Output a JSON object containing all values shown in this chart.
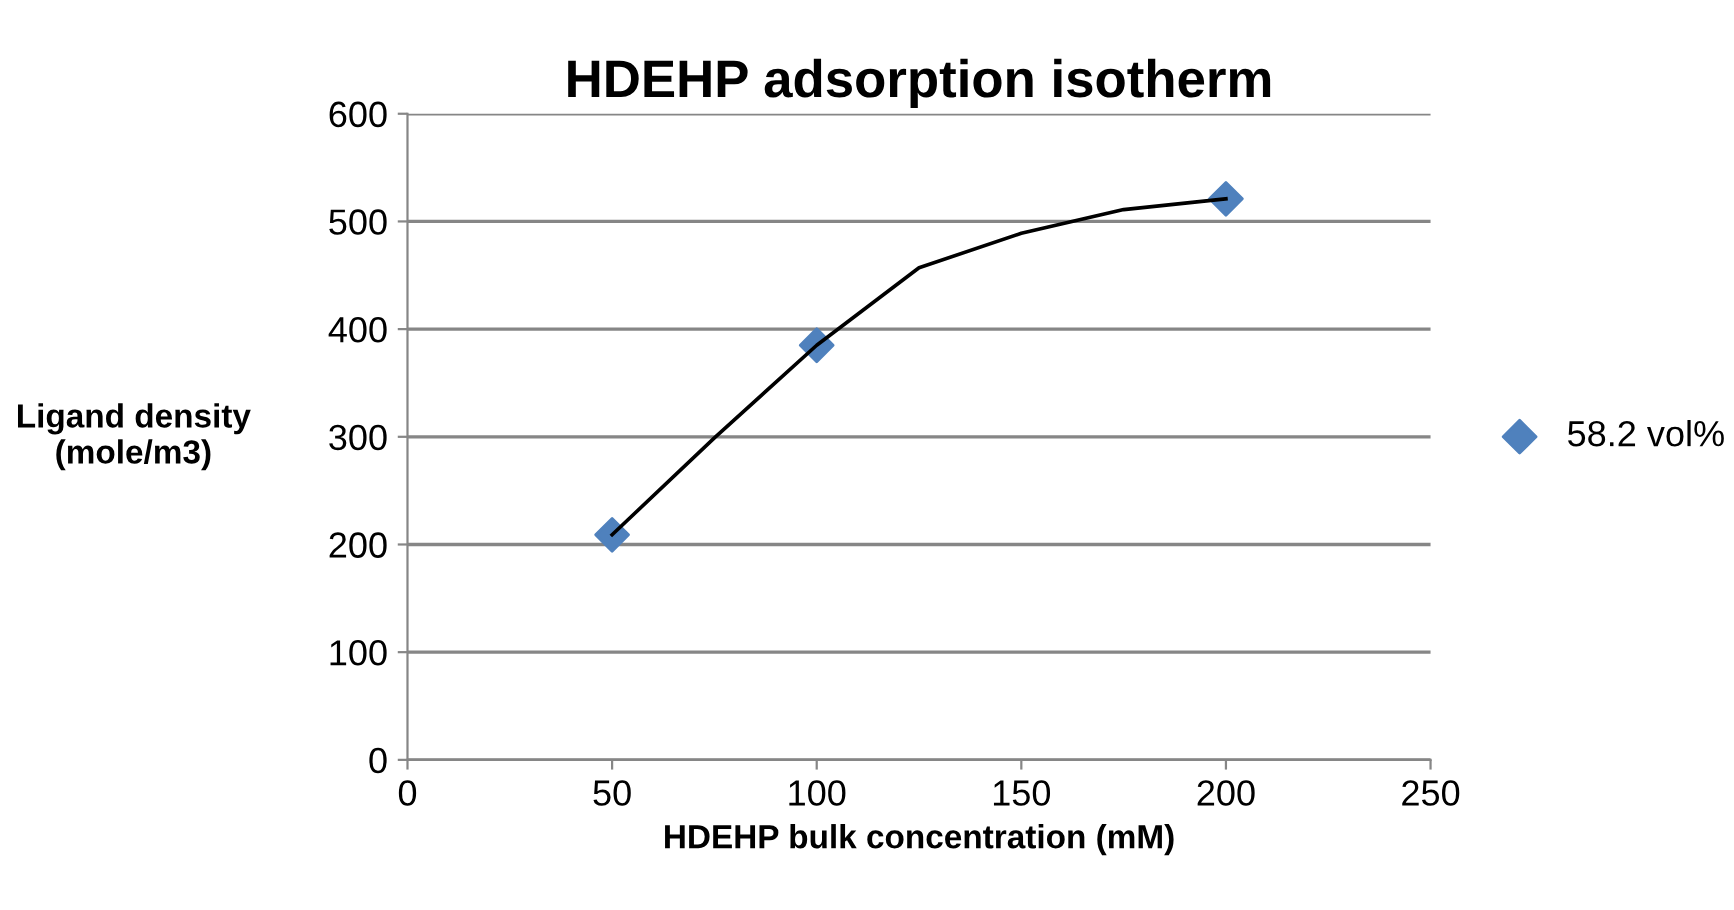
{
  "chart_data": {
    "type": "scatter",
    "title": "HDEHP adsorption isotherm",
    "xlabel": "HDEHP bulk concentration (mM)",
    "ylabel": "Ligand density\n(mole/m3)",
    "series": [
      {
        "name": "58.2 vol%",
        "color": "#4f81bd",
        "x": [
          50,
          100,
          200
        ],
        "values": [
          209,
          385,
          521
        ],
        "marker": "diamond"
      },
      {
        "type": "line",
        "color": "#000000",
        "x": [
          50,
          75,
          100,
          125,
          150,
          175,
          200
        ],
        "values": [
          209,
          299,
          385,
          457,
          489,
          511,
          521
        ],
        "marker": "none"
      }
    ],
    "xlim": [
      0,
      250
    ],
    "xticks": [
      0,
      50,
      100,
      150,
      200,
      250
    ],
    "ylim": [
      0,
      600
    ],
    "yticks": [
      0,
      100,
      200,
      300,
      400,
      500,
      600
    ],
    "grid": "y",
    "legend": "right"
  }
}
